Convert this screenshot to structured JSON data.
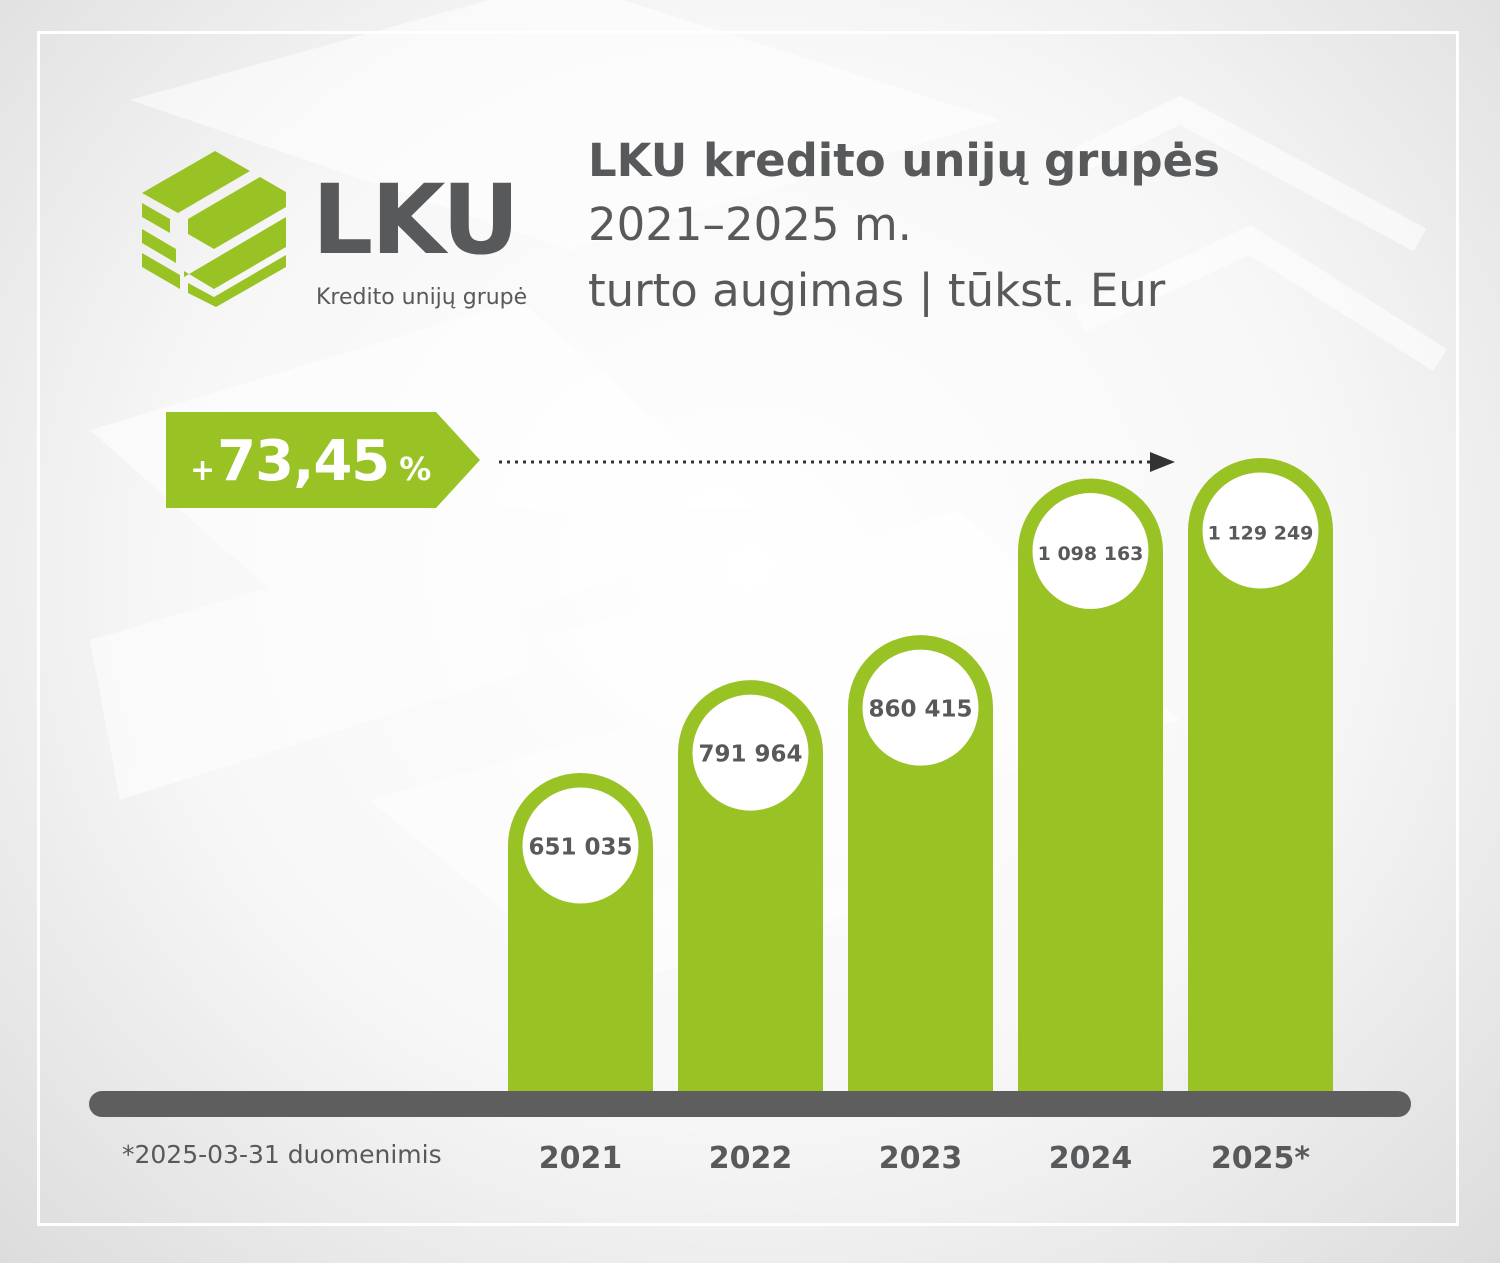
{
  "logo": {
    "text": "LKU",
    "subtitle": "Kredito unijų grupė",
    "color": "#99c224"
  },
  "title": {
    "line1": "LKU kredito unijų grupės",
    "line2": "2021–2025 m.",
    "line3": "turto augimas | tūkst. Eur"
  },
  "growth": {
    "sign": "+",
    "value": "73,45",
    "unit": "%"
  },
  "footnote": "*2025-03-31 duomenimis",
  "colors": {
    "bar": "#99c224",
    "baseline": "#5e5e5e",
    "text": "#58595b",
    "label_circle": "#ffffff"
  },
  "chart_data": {
    "type": "bar",
    "categories": [
      "2021",
      "2022",
      "2023",
      "2024",
      "2025*"
    ],
    "values": [
      651035,
      791964,
      860415,
      1098163,
      1129249
    ],
    "value_labels": [
      "651 035",
      "791 964",
      "860 415",
      "1 098 163",
      "1 129 249"
    ],
    "title": "LKU kredito unijų grupės 2021–2025 m. turto augimas | tūkst. Eur",
    "xlabel": "",
    "ylabel": "",
    "grid": false,
    "legend": "none"
  }
}
